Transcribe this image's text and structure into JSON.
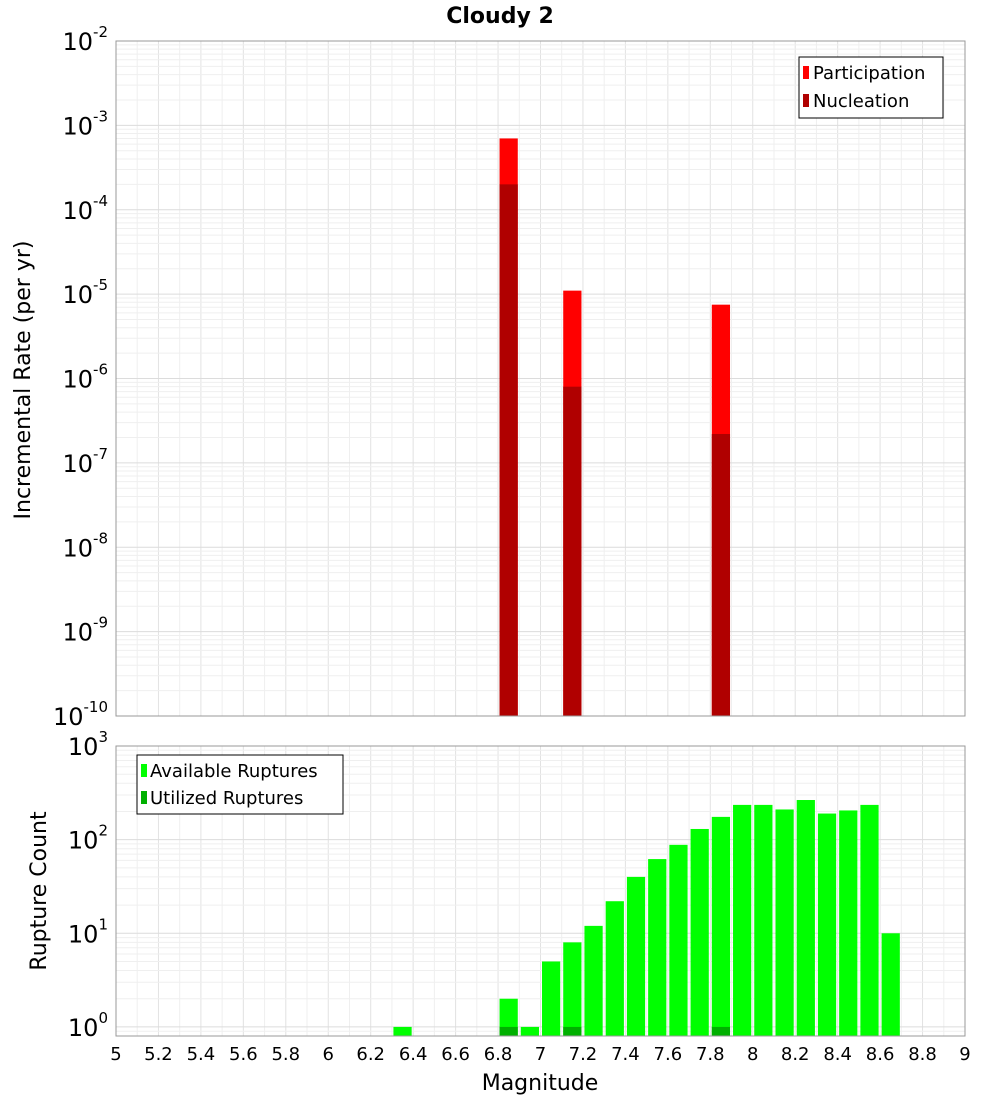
{
  "title": "Cloudy 2",
  "chart_data": [
    {
      "type": "bar",
      "subtype": "overlaid",
      "ylabel": "Incremental Rate (per yr)",
      "yscale": "log",
      "ylim": [
        1e-10,
        0.01
      ],
      "ytick_exponents": [
        -10,
        -9,
        -8,
        -7,
        -6,
        -5,
        -4,
        -3,
        -2
      ],
      "xlim": [
        5,
        9
      ],
      "grid": true,
      "legend_position": "top-right",
      "bar_width": 0.1,
      "series": [
        {
          "name": "Participation",
          "color": "#ff0000",
          "points": [
            {
              "x": 6.85,
              "y": 0.0007
            },
            {
              "x": 7.15,
              "y": 1.1e-05
            },
            {
              "x": 7.85,
              "y": 7.5e-06
            }
          ]
        },
        {
          "name": "Nucleation",
          "color": "#b00000",
          "points": [
            {
              "x": 6.85,
              "y": 0.0002
            },
            {
              "x": 7.15,
              "y": 8e-07
            },
            {
              "x": 7.85,
              "y": 2.2e-07
            }
          ]
        }
      ]
    },
    {
      "type": "bar",
      "subtype": "overlaid",
      "ylabel": "Rupture Count",
      "xlabel": "Magnitude",
      "yscale": "log",
      "ylim": [
        0.8,
        1000
      ],
      "ytick_exponents": [
        0,
        1,
        2,
        3
      ],
      "xlim": [
        5,
        9
      ],
      "xticks": [
        "5",
        "5.2",
        "5.4",
        "5.6",
        "5.8",
        "6",
        "6.2",
        "6.4",
        "6.6",
        "6.8",
        "7",
        "7.2",
        "7.4",
        "7.6",
        "7.8",
        "8",
        "8.2",
        "8.4",
        "8.6",
        "8.8",
        "9"
      ],
      "grid": true,
      "legend_position": "top-left",
      "bar_width": 0.1,
      "series": [
        {
          "name": "Available Ruptures",
          "color": "#00ff00",
          "points": [
            {
              "x": 6.35,
              "y": 1
            },
            {
              "x": 6.85,
              "y": 2
            },
            {
              "x": 6.95,
              "y": 1
            },
            {
              "x": 7.05,
              "y": 5
            },
            {
              "x": 7.15,
              "y": 8
            },
            {
              "x": 7.25,
              "y": 12
            },
            {
              "x": 7.35,
              "y": 22
            },
            {
              "x": 7.45,
              "y": 40
            },
            {
              "x": 7.55,
              "y": 62
            },
            {
              "x": 7.65,
              "y": 88
            },
            {
              "x": 7.75,
              "y": 130
            },
            {
              "x": 7.85,
              "y": 175
            },
            {
              "x": 7.95,
              "y": 235
            },
            {
              "x": 8.05,
              "y": 235
            },
            {
              "x": 8.15,
              "y": 210
            },
            {
              "x": 8.25,
              "y": 265
            },
            {
              "x": 8.35,
              "y": 190
            },
            {
              "x": 8.45,
              "y": 205
            },
            {
              "x": 8.55,
              "y": 235
            },
            {
              "x": 8.65,
              "y": 10
            }
          ]
        },
        {
          "name": "Utilized Ruptures",
          "color": "#00b000",
          "points": [
            {
              "x": 6.85,
              "y": 1
            },
            {
              "x": 7.15,
              "y": 1
            },
            {
              "x": 7.85,
              "y": 1
            }
          ]
        }
      ]
    }
  ]
}
